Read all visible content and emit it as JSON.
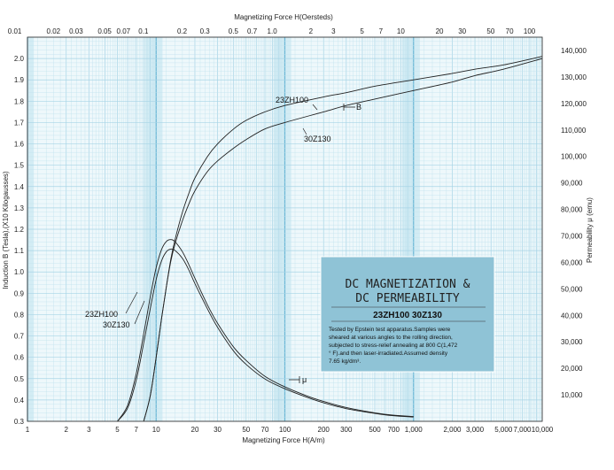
{
  "chart_data": {
    "type": "line",
    "x_scale": "log",
    "xlim": [
      1,
      10000
    ],
    "ylim_left": [
      0.3,
      2.1
    ],
    "ylim_right": [
      0,
      145000
    ],
    "xlabel_bottom": "Magnetizing Force H(A/m)",
    "xlabel_top": "Magnetizing Force H(Oersteds)",
    "ylabel_left": "Induction B (Tesla),(X10   Kilogausses)",
    "ylabel_right": "Permeability μ (emu)",
    "bottom_ticks": [
      {
        "v": 1,
        "label": "1"
      },
      {
        "v": 2,
        "label": "2"
      },
      {
        "v": 3,
        "label": "3"
      },
      {
        "v": 5,
        "label": "5"
      },
      {
        "v": 7,
        "label": "7"
      },
      {
        "v": 10,
        "label": "10"
      },
      {
        "v": 20,
        "label": "20"
      },
      {
        "v": 30,
        "label": "30"
      },
      {
        "v": 50,
        "label": "50"
      },
      {
        "v": 70,
        "label": "70"
      },
      {
        "v": 100,
        "label": "100"
      },
      {
        "v": 200,
        "label": "200"
      },
      {
        "v": 300,
        "label": "300"
      },
      {
        "v": 500,
        "label": "500"
      },
      {
        "v": 700,
        "label": "700"
      },
      {
        "v": 1000,
        "label": "1,000"
      },
      {
        "v": 2000,
        "label": "2,000"
      },
      {
        "v": 3000,
        "label": "3,000"
      },
      {
        "v": 5000,
        "label": "5,000"
      },
      {
        "v": 7000,
        "label": "7,000"
      },
      {
        "v": 10000,
        "label": "10,000"
      }
    ],
    "top_ticks": [
      {
        "v": 0.01,
        "label": "0.01"
      },
      {
        "v": 0.02,
        "label": "0.02"
      },
      {
        "v": 0.03,
        "label": "0.03"
      },
      {
        "v": 0.05,
        "label": "0.05"
      },
      {
        "v": 0.07,
        "label": "0.07"
      },
      {
        "v": 0.1,
        "label": "0.1"
      },
      {
        "v": 0.2,
        "label": "0.2"
      },
      {
        "v": 0.3,
        "label": "0.3"
      },
      {
        "v": 0.5,
        "label": "0.5"
      },
      {
        "v": 0.7,
        "label": "0.7"
      },
      {
        "v": 1,
        "label": "1.0"
      },
      {
        "v": 2,
        "label": "2"
      },
      {
        "v": 3,
        "label": "3"
      },
      {
        "v": 5,
        "label": "5"
      },
      {
        "v": 7,
        "label": "7"
      },
      {
        "v": 10,
        "label": "10"
      },
      {
        "v": 20,
        "label": "20"
      },
      {
        "v": 30,
        "label": "30"
      },
      {
        "v": 50,
        "label": "50"
      },
      {
        "v": 70,
        "label": "70"
      },
      {
        "v": 100,
        "label": "100"
      }
    ],
    "left_ticks": [
      {
        "v": 0.3,
        "label": "0.3"
      },
      {
        "v": 0.4,
        "label": "0.4"
      },
      {
        "v": 0.5,
        "label": "0.5"
      },
      {
        "v": 0.6,
        "label": "0.6"
      },
      {
        "v": 0.7,
        "label": "0.7"
      },
      {
        "v": 0.8,
        "label": "0.8"
      },
      {
        "v": 0.9,
        "label": "0.9"
      },
      {
        "v": 1.0,
        "label": "1.0"
      },
      {
        "v": 1.1,
        "label": "1.1"
      },
      {
        "v": 1.2,
        "label": "1.2"
      },
      {
        "v": 1.3,
        "label": "1.3"
      },
      {
        "v": 1.4,
        "label": "1.4"
      },
      {
        "v": 1.5,
        "label": "1.5"
      },
      {
        "v": 1.6,
        "label": "1.6"
      },
      {
        "v": 1.7,
        "label": "1.7"
      },
      {
        "v": 1.8,
        "label": "1.8"
      },
      {
        "v": 1.9,
        "label": "1.9"
      },
      {
        "v": 2.0,
        "label": "2.0"
      }
    ],
    "right_ticks": [
      {
        "v": 10000,
        "label": "10,000"
      },
      {
        "v": 20000,
        "label": "20,000"
      },
      {
        "v": 30000,
        "label": "30,000"
      },
      {
        "v": 40000,
        "label": "40,000"
      },
      {
        "v": 50000,
        "label": "50,000"
      },
      {
        "v": 60000,
        "label": "60,000"
      },
      {
        "v": 70000,
        "label": "70,000"
      },
      {
        "v": 80000,
        "label": "80,000"
      },
      {
        "v": 90000,
        "label": "90,000"
      },
      {
        "v": 100000,
        "label": "100,000"
      },
      {
        "v": 110000,
        "label": "110,000"
      },
      {
        "v": 120000,
        "label": "120,000"
      },
      {
        "v": 130000,
        "label": "130,000"
      },
      {
        "v": 140000,
        "label": "140,000"
      }
    ],
    "series": [
      {
        "name": "23ZH100",
        "kind": "induction",
        "axis": "left",
        "x": [
          8,
          9,
          10,
          11,
          12,
          13,
          14,
          16,
          18,
          20,
          25,
          30,
          40,
          50,
          70,
          100,
          200,
          300,
          500,
          1000,
          2000,
          3000,
          5000,
          10000
        ],
        "y": [
          0.3,
          0.42,
          0.6,
          0.78,
          0.93,
          1.06,
          1.15,
          1.28,
          1.37,
          1.44,
          1.54,
          1.6,
          1.67,
          1.71,
          1.75,
          1.78,
          1.82,
          1.84,
          1.87,
          1.9,
          1.93,
          1.95,
          1.97,
          2.01
        ]
      },
      {
        "name": "30Z130",
        "kind": "induction",
        "axis": "left",
        "x": [
          8,
          9,
          10,
          11,
          12,
          13,
          14,
          16,
          18,
          20,
          25,
          30,
          40,
          50,
          70,
          100,
          200,
          300,
          500,
          1000,
          2000,
          3000,
          5000,
          10000
        ],
        "y": [
          0.3,
          0.42,
          0.6,
          0.78,
          0.93,
          1.05,
          1.13,
          1.24,
          1.32,
          1.38,
          1.47,
          1.52,
          1.58,
          1.62,
          1.67,
          1.7,
          1.75,
          1.78,
          1.81,
          1.85,
          1.89,
          1.92,
          1.95,
          2.0
        ]
      },
      {
        "name": "23ZH100",
        "kind": "permeability",
        "axis": "right",
        "x": [
          5,
          6,
          7,
          8,
          9,
          10,
          11,
          12,
          13,
          14,
          16,
          18,
          20,
          25,
          30,
          40,
          50,
          70,
          100,
          150,
          200,
          300,
          500,
          700,
          1000
        ],
        "y": [
          0,
          6000,
          18000,
          33000,
          47000,
          58000,
          64800,
          67900,
          68600,
          67800,
          64000,
          59000,
          54000,
          44000,
          37000,
          28000,
          23000,
          17000,
          13000,
          9500,
          7500,
          5200,
          3200,
          2300,
          1800
        ]
      },
      {
        "name": "30Z130",
        "kind": "permeability",
        "axis": "right",
        "x": [
          5,
          6,
          7,
          8,
          9,
          10,
          11,
          12,
          13,
          14,
          16,
          18,
          20,
          25,
          30,
          40,
          50,
          70,
          100,
          150,
          200,
          300,
          500,
          700,
          1000
        ],
        "y": [
          0,
          5000,
          15500,
          29500,
          42500,
          53500,
          60500,
          64000,
          65000,
          64500,
          61500,
          57000,
          52000,
          42500,
          35500,
          26500,
          21500,
          16000,
          12300,
          9000,
          7000,
          4800,
          3000,
          2100,
          1600
        ]
      }
    ],
    "curve_labels": {
      "induction_a": "23ZH100",
      "induction_b": "30Z130",
      "permeability_a": "23ZH100",
      "permeability_b": "30Z130"
    },
    "arrow_labels": {
      "induction": "B",
      "permeability": "μ"
    }
  },
  "info_box": {
    "title_line1": "DC MAGNETIZATION &",
    "title_line2": "DC PERMEABILITY",
    "grades": "23ZH100   30Z130",
    "note_line1": "Tested by Epstein test apparatus.Samples were",
    "note_line2": "sheared at various angles to the rolling direction,",
    "note_line3": "subjected to stress-relief annealing at 800 C(1,472",
    "note_line4": "° F).and  then  laser-irradiated.Assumed density",
    "note_line5": "7.65 kg/dm³."
  },
  "colors": {
    "grid_band": "#d3ecf4",
    "grid_minor": "#a7d4e6",
    "grid_major": "#6db8d6",
    "info_box_fill": "#8fc3d6",
    "curve": "#222222"
  }
}
